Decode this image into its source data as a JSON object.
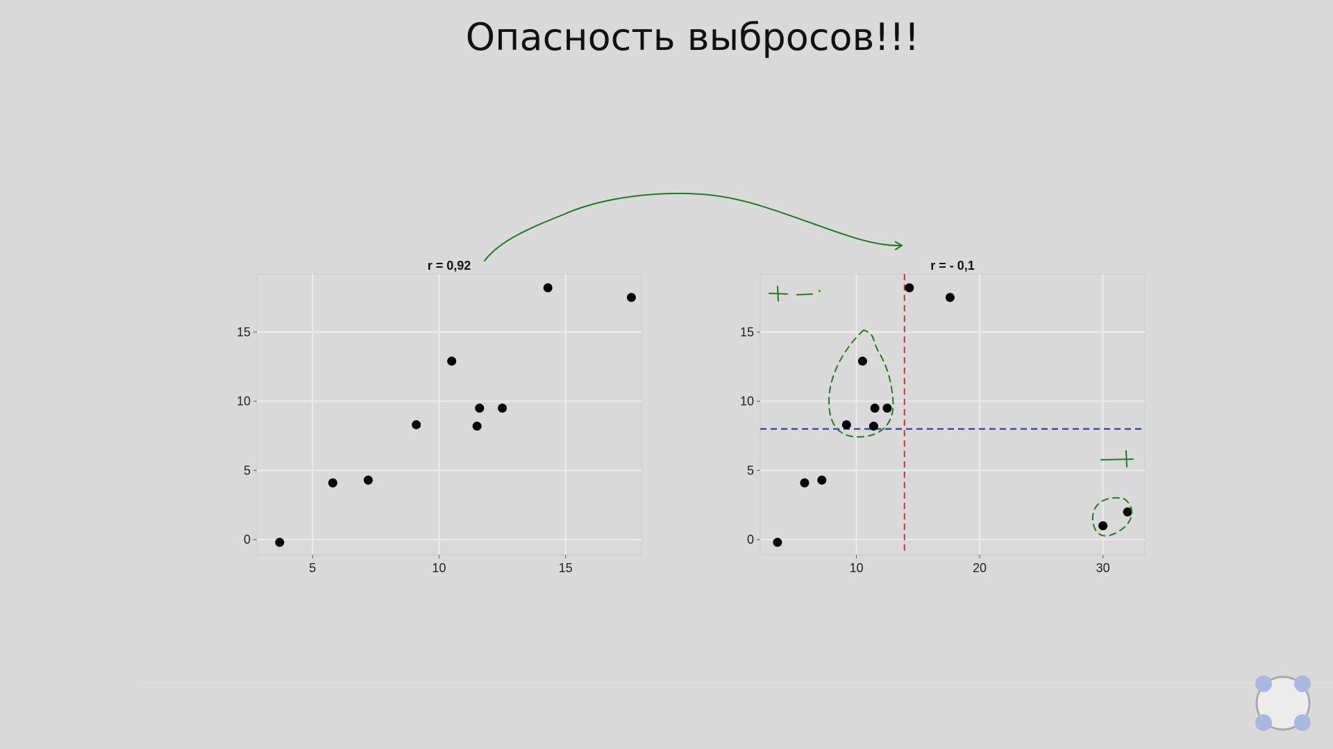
{
  "slide": {
    "title": "Опасность выбросов!!!"
  },
  "colors": {
    "background": "#d9d9d9",
    "panel": "#d9d9d9",
    "grid": "#ececec",
    "point": "#000000",
    "annotation_green": "#1e7a1e",
    "mean_x_line": "#c0392b",
    "mean_y_line": "#1f2a9c",
    "logo_dots": "#a9b9dd"
  },
  "icons": {
    "logo": "four-dots-logo-icon"
  },
  "chart_data": [
    {
      "type": "scatter",
      "title": "r = 0,92",
      "xlabel": "",
      "ylabel": "",
      "xlim": [
        2.8,
        18.0
      ],
      "ylim": [
        -1.1,
        19.2
      ],
      "x_ticks": [
        5,
        10,
        15
      ],
      "y_ticks": [
        0,
        5,
        10,
        15
      ],
      "grid": true,
      "points": [
        {
          "x": 3.7,
          "y": -0.2
        },
        {
          "x": 5.8,
          "y": 4.1
        },
        {
          "x": 7.2,
          "y": 4.3
        },
        {
          "x": 9.1,
          "y": 8.3
        },
        {
          "x": 10.5,
          "y": 12.9
        },
        {
          "x": 11.6,
          "y": 9.5
        },
        {
          "x": 11.5,
          "y": 8.2
        },
        {
          "x": 12.5,
          "y": 9.5
        },
        {
          "x": 14.3,
          "y": 18.2
        },
        {
          "x": 17.6,
          "y": 17.5
        }
      ]
    },
    {
      "type": "scatter",
      "title": "r = - 0,1",
      "xlabel": "",
      "ylabel": "",
      "xlim": [
        2.2,
        33.4
      ],
      "ylim": [
        -1.1,
        19.2
      ],
      "x_ticks": [
        10,
        20,
        30
      ],
      "y_ticks": [
        0,
        5,
        10,
        15
      ],
      "grid": true,
      "mean_x": 13.9,
      "mean_y": 8.0,
      "points": [
        {
          "x": 3.6,
          "y": -0.2
        },
        {
          "x": 5.8,
          "y": 4.1
        },
        {
          "x": 7.2,
          "y": 4.3
        },
        {
          "x": 9.2,
          "y": 8.3
        },
        {
          "x": 10.5,
          "y": 12.9
        },
        {
          "x": 11.5,
          "y": 9.5
        },
        {
          "x": 11.4,
          "y": 8.2
        },
        {
          "x": 12.5,
          "y": 9.5
        },
        {
          "x": 14.3,
          "y": 18.2
        },
        {
          "x": 17.6,
          "y": 17.5
        },
        {
          "x": 30.0,
          "y": 1.0
        },
        {
          "x": 32.0,
          "y": 2.0
        }
      ],
      "annotations": {
        "quadrant_top_left": "+ -",
        "quadrant_bottom_right": "- +"
      }
    }
  ]
}
